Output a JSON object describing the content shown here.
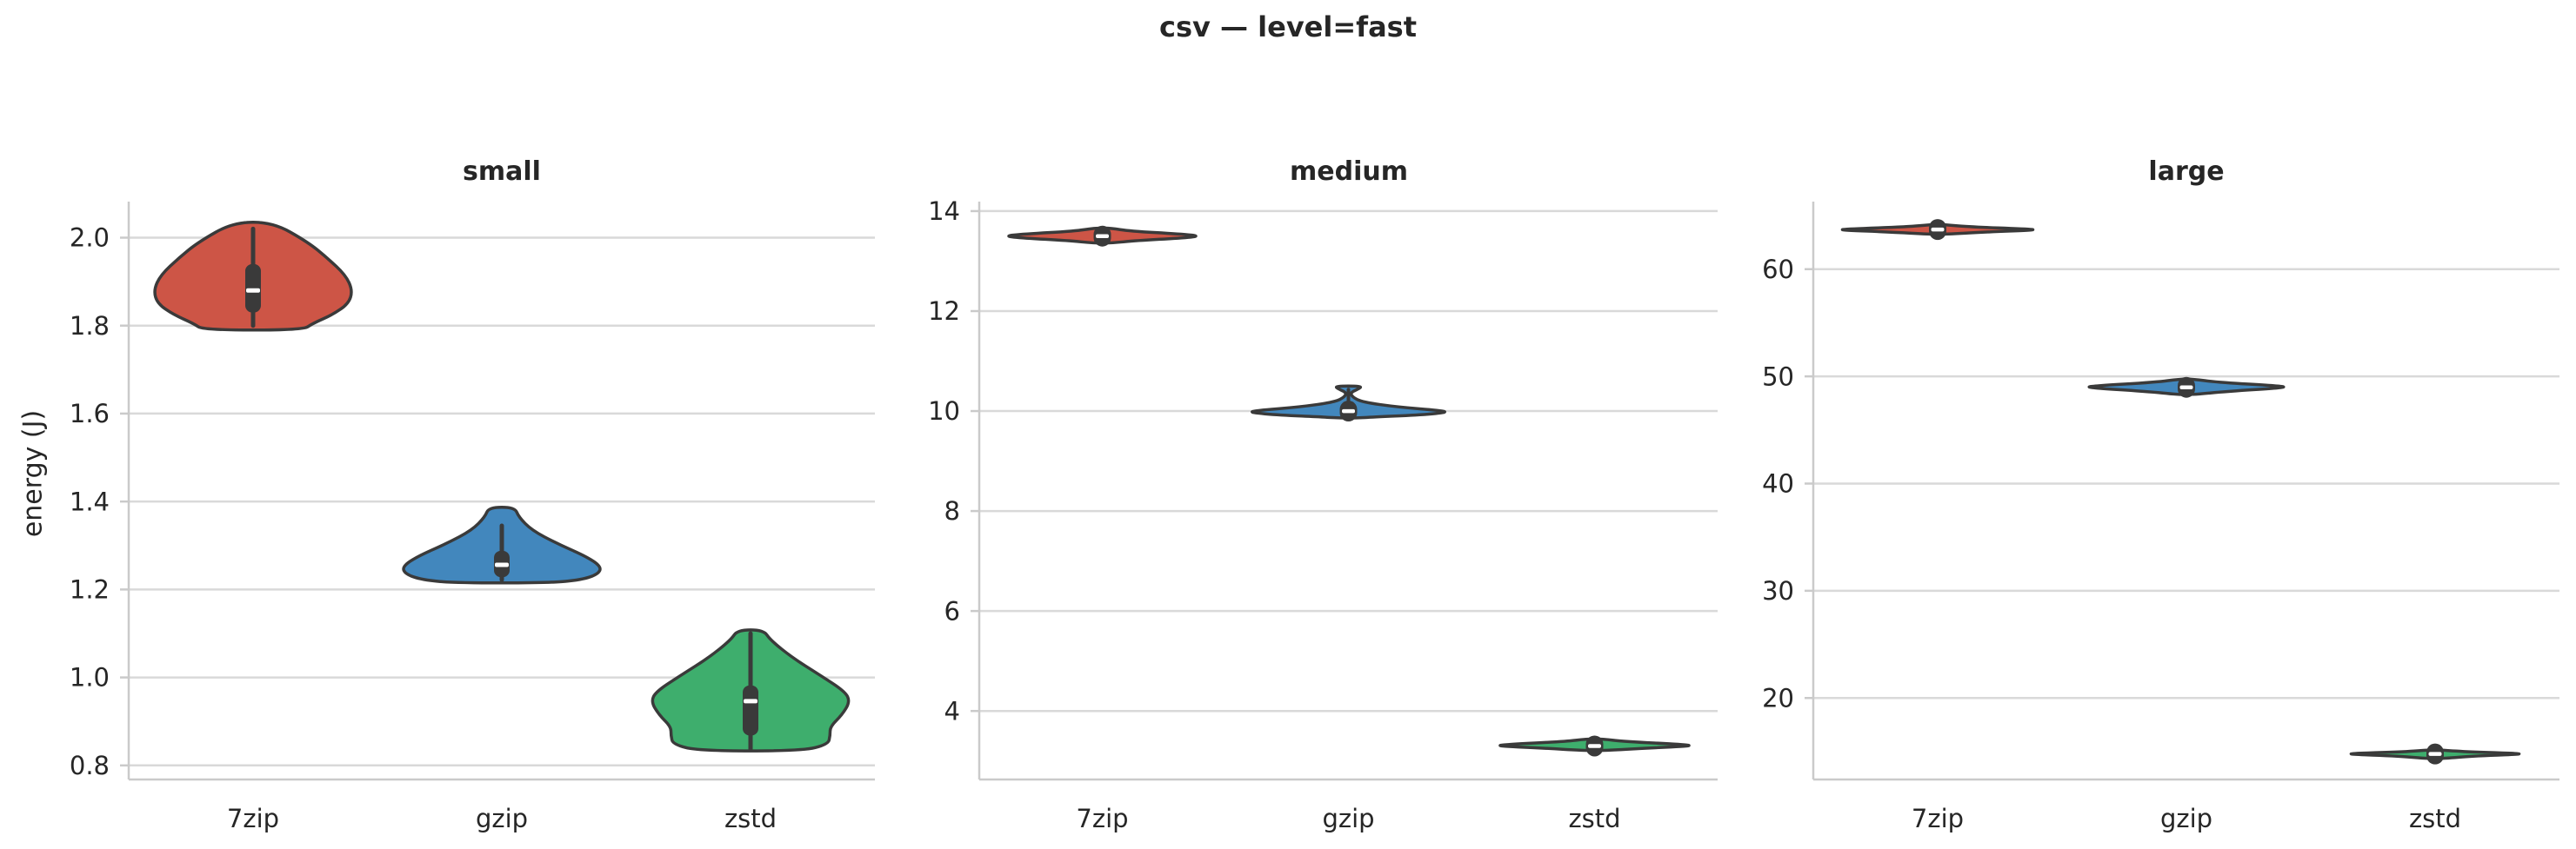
{
  "figure": {
    "title": "csv — level=fast",
    "background": "#ffffff",
    "text_color": "#262626",
    "grid_color": "#d9d9d9",
    "spine_color": "#cacaca",
    "outline_color": "#3a3a3a",
    "median_color": "#ffffff"
  },
  "chart_data": {
    "type": "violin",
    "title": "csv — level=fast",
    "legend": "none",
    "grid": "horizontal",
    "palette": {
      "7zip": "#cd5546",
      "gzip": "#4287bd",
      "zstd": "#3eae6d"
    },
    "categories": [
      "7zip",
      "gzip",
      "zstd"
    ],
    "subplots": [
      {
        "title": "small",
        "ylabel": "energy (J)",
        "ylim": [
          0.768,
          2.082
        ],
        "ytick_values": [
          0.8,
          1.0,
          1.2,
          1.4,
          1.6,
          1.8,
          2.0
        ],
        "ytick_labels": [
          "0.8",
          "1.0",
          "1.2",
          "1.4",
          "1.6",
          "1.8",
          "2.0"
        ],
        "violins": [
          {
            "name": "7zip",
            "marker": "bar",
            "stats": {
              "min": 1.79,
              "max": 2.035,
              "median": 1.88,
              "q1": 1.83,
              "q3": 1.94,
              "whisker_low": 1.8,
              "whisker_high": 2.02
            },
            "profile": [
              [
                2.035,
                0.2
              ],
              [
                1.99,
                0.55
              ],
              [
                1.955,
                0.74
              ],
              [
                1.915,
                0.93
              ],
              [
                1.88,
                1.0
              ],
              [
                1.85,
                0.96
              ],
              [
                1.825,
                0.8
              ],
              [
                1.805,
                0.6
              ],
              [
                1.79,
                0.5
              ]
            ]
          },
          {
            "name": "gzip",
            "marker": "bar",
            "stats": {
              "min": 1.215,
              "max": 1.387,
              "median": 1.256,
              "q1": 1.228,
              "q3": 1.288,
              "whisker_low": 1.222,
              "whisker_high": 1.345
            },
            "profile": [
              [
                1.387,
                0.13
              ],
              [
                1.365,
                0.17
              ],
              [
                1.335,
                0.3
              ],
              [
                1.305,
                0.55
              ],
              [
                1.275,
                0.85
              ],
              [
                1.252,
                1.0
              ],
              [
                1.235,
                0.97
              ],
              [
                1.222,
                0.8
              ],
              [
                1.215,
                0.48
              ]
            ]
          },
          {
            "name": "zstd",
            "marker": "bar",
            "stats": {
              "min": 0.833,
              "max": 1.108,
              "median": 0.946,
              "q1": 0.868,
              "q3": 0.982,
              "whisker_low": 0.835,
              "whisker_high": 1.1
            },
            "profile": [
              [
                1.108,
                0.13
              ],
              [
                1.085,
                0.2
              ],
              [
                1.045,
                0.42
              ],
              [
                1.005,
                0.7
              ],
              [
                0.968,
                0.95
              ],
              [
                0.945,
                1.0
              ],
              [
                0.915,
                0.92
              ],
              [
                0.888,
                0.8
              ],
              [
                0.868,
                0.8
              ],
              [
                0.848,
                0.78
              ],
              [
                0.833,
                0.52
              ]
            ]
          }
        ]
      },
      {
        "title": "medium",
        "ylabel": "",
        "ylim": [
          2.63,
          14.19
        ],
        "ytick_values": [
          4,
          6,
          8,
          10,
          12,
          14
        ],
        "ytick_labels": [
          "4",
          "6",
          "8",
          "10",
          "12",
          "14"
        ],
        "violins": [
          {
            "name": "7zip",
            "marker": "dot",
            "stats": {
              "min": 13.36,
              "max": 13.66,
              "median": 13.5,
              "whisker_low": 13.42,
              "whisker_high": 13.6
            },
            "profile": [
              [
                13.66,
                0.08
              ],
              [
                13.6,
                0.28
              ],
              [
                13.54,
                0.8
              ],
              [
                13.5,
                1.0
              ],
              [
                13.46,
                0.8
              ],
              [
                13.41,
                0.35
              ],
              [
                13.36,
                0.08
              ]
            ]
          },
          {
            "name": "gzip",
            "marker": "dot",
            "stats": {
              "min": 9.86,
              "max": 10.5,
              "median": 10.0,
              "whisker_low": 9.92,
              "whisker_high": 10.43
            },
            "profile": [
              [
                10.5,
                0.14
              ],
              [
                10.44,
                0.1
              ],
              [
                10.37,
                0.02
              ],
              [
                10.28,
                0.04
              ],
              [
                10.18,
                0.14
              ],
              [
                10.08,
                0.5
              ],
              [
                10.01,
                0.95
              ],
              [
                9.97,
                1.0
              ],
              [
                9.92,
                0.7
              ],
              [
                9.88,
                0.25
              ],
              [
                9.86,
                0.08
              ]
            ]
          },
          {
            "name": "zstd",
            "marker": "dot",
            "stats": {
              "min": 3.21,
              "max": 3.44,
              "median": 3.3,
              "whisker_low": 3.25,
              "whisker_high": 3.37
            },
            "profile": [
              [
                3.44,
                0.08
              ],
              [
                3.39,
                0.3
              ],
              [
                3.33,
                0.9
              ],
              [
                3.3,
                1.0
              ],
              [
                3.26,
                0.55
              ],
              [
                3.21,
                0.1
              ]
            ]
          }
        ]
      },
      {
        "title": "large",
        "ylabel": "",
        "ylim": [
          12.4,
          66.3
        ],
        "ytick_values": [
          20,
          30,
          40,
          50,
          60
        ],
        "ytick_labels": [
          "20",
          "30",
          "40",
          "50",
          "60"
        ],
        "violins": [
          {
            "name": "7zip",
            "marker": "dot",
            "stats": {
              "min": 63.25,
              "max": 64.15,
              "median": 63.7,
              "whisker_low": 63.52,
              "whisker_high": 63.9
            },
            "profile": [
              [
                64.15,
                0.07
              ],
              [
                63.95,
                0.3
              ],
              [
                63.75,
                0.9
              ],
              [
                63.65,
                1.0
              ],
              [
                63.45,
                0.45
              ],
              [
                63.25,
                0.08
              ]
            ]
          },
          {
            "name": "gzip",
            "marker": "dot",
            "stats": {
              "min": 48.3,
              "max": 49.75,
              "median": 48.98,
              "whisker_low": 48.78,
              "whisker_high": 49.25
            },
            "profile": [
              [
                49.75,
                0.07
              ],
              [
                49.45,
                0.3
              ],
              [
                49.1,
                0.95
              ],
              [
                48.95,
                1.0
              ],
              [
                48.6,
                0.4
              ],
              [
                48.3,
                0.08
              ]
            ]
          },
          {
            "name": "zstd",
            "marker": "dot",
            "stats": {
              "min": 14.35,
              "max": 15.15,
              "median": 14.78,
              "whisker_low": 14.62,
              "whisker_high": 14.95
            },
            "profile": [
              [
                15.15,
                0.07
              ],
              [
                14.95,
                0.35
              ],
              [
                14.8,
                1.0
              ],
              [
                14.6,
                0.4
              ],
              [
                14.35,
                0.08
              ]
            ]
          }
        ]
      }
    ]
  }
}
